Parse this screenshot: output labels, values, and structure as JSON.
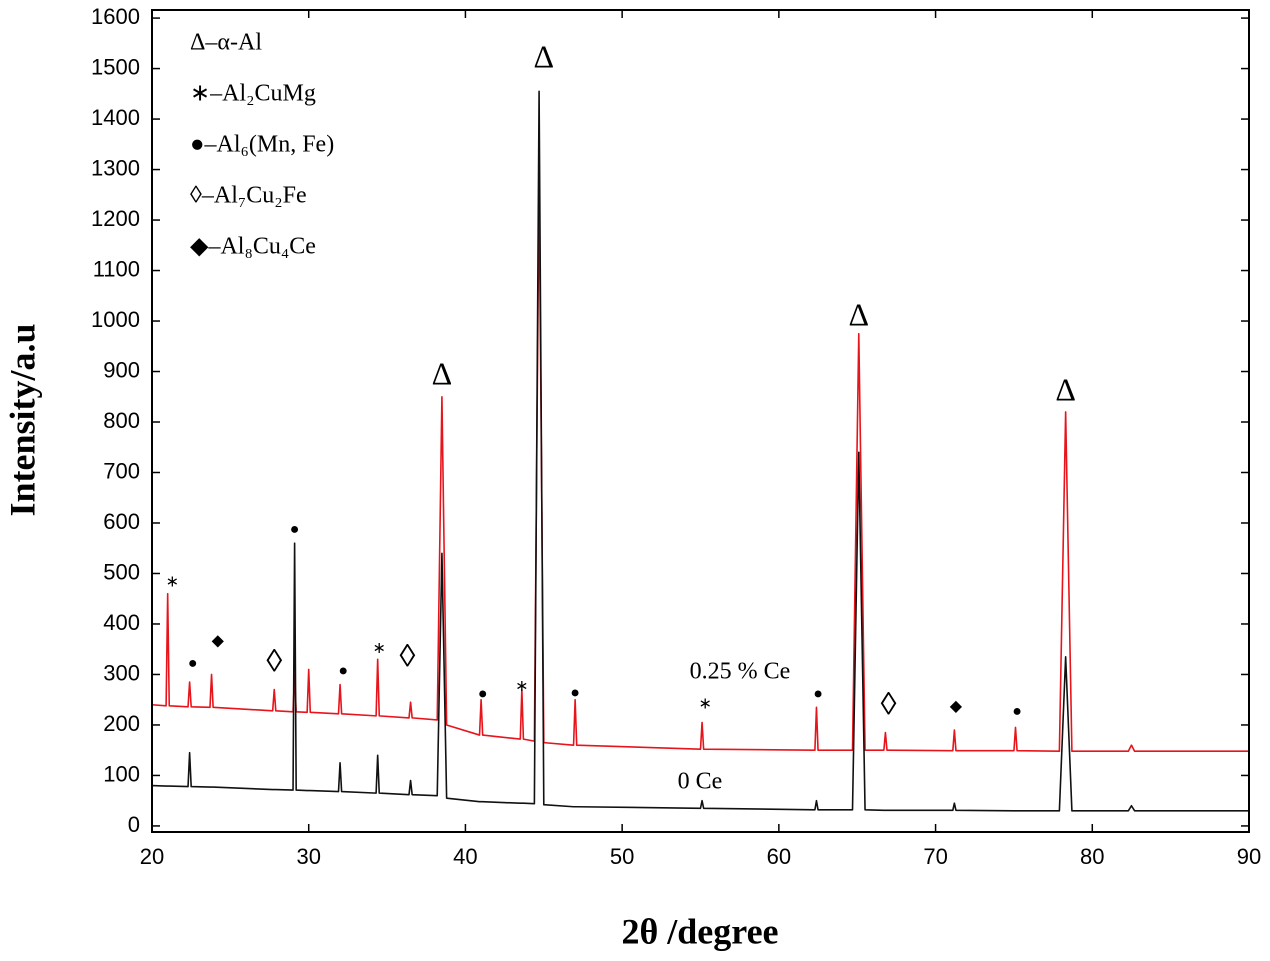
{
  "chart_data": {
    "type": "line",
    "x_label": "2θ /degree",
    "y_label": "Intensity/a.u",
    "xlim": [
      20,
      90
    ],
    "ylim": [
      -12,
      1616
    ],
    "xticks": [
      20,
      30,
      40,
      50,
      60,
      70,
      80,
      90
    ],
    "yticks": [
      0,
      100,
      200,
      300,
      400,
      500,
      600,
      700,
      800,
      900,
      1000,
      1100,
      1200,
      1300,
      1400,
      1500,
      1600
    ],
    "x": [
      20,
      20.9,
      21.0,
      21.1,
      22.3,
      22.4,
      22.5,
      23.7,
      23.8,
      23.9,
      27.7,
      27.8,
      27.9,
      29.0,
      29.1,
      29.2,
      29.9,
      30.0,
      30.1,
      31.9,
      32.0,
      32.1,
      34.3,
      34.4,
      34.5,
      36.4,
      36.5,
      36.6,
      38.2,
      38.5,
      38.8,
      40.9,
      41.0,
      41.1,
      43.5,
      43.6,
      43.7,
      44.4,
      44.7,
      45.0,
      46.9,
      47.0,
      47.1,
      55.0,
      55.1,
      55.2,
      62.3,
      62.4,
      62.5,
      64.7,
      65.1,
      65.5,
      66.7,
      66.8,
      66.9,
      71.1,
      71.2,
      71.3,
      75.0,
      75.1,
      75.2,
      77.9,
      78.3,
      78.7,
      82.3,
      82.5,
      82.7,
      90
    ],
    "series": [
      {
        "name": "0.25 % Ce",
        "color": "#e8141b",
        "values": [
          240,
          238,
          460,
          238,
          236,
          285,
          236,
          235,
          300,
          235,
          228,
          270,
          228,
          226,
          300,
          226,
          225,
          310,
          225,
          222,
          280,
          222,
          218,
          330,
          218,
          214,
          245,
          214,
          210,
          850,
          200,
          180,
          250,
          180,
          172,
          270,
          172,
          168,
          1280,
          165,
          160,
          250,
          160,
          152,
          205,
          152,
          150,
          235,
          150,
          150,
          975,
          150,
          150,
          185,
          150,
          149,
          190,
          149,
          149,
          195,
          149,
          148,
          820,
          148,
          148,
          160,
          148,
          148
        ]
      },
      {
        "name": "0 Ce",
        "color": "#111111",
        "values": [
          80,
          79,
          79,
          79,
          78,
          145,
          78,
          77,
          77,
          77,
          72,
          72,
          72,
          71,
          560,
          71,
          70,
          70,
          70,
          68,
          125,
          68,
          65,
          140,
          65,
          62,
          90,
          62,
          60,
          540,
          55,
          48,
          48,
          48,
          45,
          45,
          45,
          44,
          1455,
          42,
          38,
          38,
          38,
          35,
          50,
          35,
          32,
          50,
          32,
          32,
          740,
          32,
          31,
          31,
          31,
          31,
          45,
          31,
          30,
          30,
          30,
          30,
          335,
          30,
          30,
          40,
          30,
          30
        ]
      }
    ],
    "phase_legend": [
      "Δ–α-Al",
      "∗–Al₂CuMg",
      "●–Al₆(Mn, Fe)",
      "◊–Al₇Cu₂Fe",
      "◆–Al₈Cu₄Ce"
    ],
    "annotations": [
      {
        "text": "Δ",
        "x": 38.5,
        "y": 889
      },
      {
        "text": "Δ",
        "x": 45.0,
        "y": 1517
      },
      {
        "text": "Δ",
        "x": 65.1,
        "y": 1006
      },
      {
        "text": "Δ",
        "x": 78.3,
        "y": 857
      },
      {
        "text": "∗",
        "x": 21.3,
        "y": 481
      },
      {
        "text": "●",
        "x": 22.6,
        "y": 320
      },
      {
        "text": "◆",
        "x": 24.2,
        "y": 365
      },
      {
        "text": "◊",
        "x": 27.8,
        "y": 320
      },
      {
        "text": "●",
        "x": 29.1,
        "y": 585
      },
      {
        "text": "●",
        "x": 32.2,
        "y": 305
      },
      {
        "text": "∗",
        "x": 34.5,
        "y": 350
      },
      {
        "text": "◊",
        "x": 36.3,
        "y": 330
      },
      {
        "text": "●",
        "x": 41.1,
        "y": 260
      },
      {
        "text": "∗",
        "x": 43.6,
        "y": 275
      },
      {
        "text": "●",
        "x": 47.0,
        "y": 262
      },
      {
        "text": "∗",
        "x": 55.3,
        "y": 240
      },
      {
        "text": "●",
        "x": 62.5,
        "y": 260
      },
      {
        "text": "◊",
        "x": 67.0,
        "y": 235
      },
      {
        "text": "◆",
        "x": 71.3,
        "y": 235
      },
      {
        "text": "●",
        "x": 75.2,
        "y": 225
      }
    ]
  }
}
